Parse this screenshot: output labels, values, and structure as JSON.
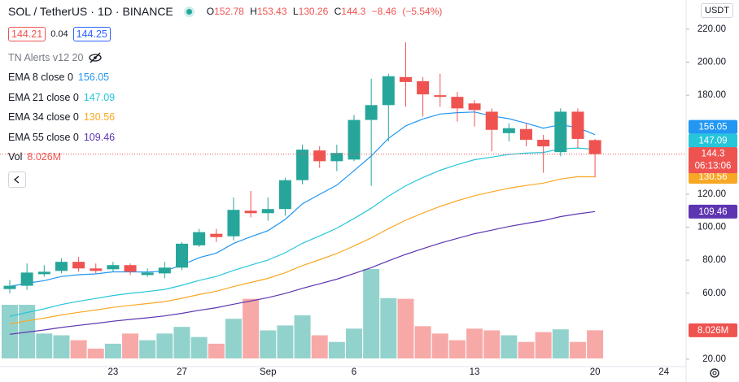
{
  "chart_data": {
    "type": "candlestick",
    "symbol": "SOL / TetherUS",
    "interval": "1D",
    "exchange": "BINANCE",
    "ohlc_labels": [
      "O",
      "H",
      "L",
      "C"
    ],
    "change": "−8.46",
    "change_pct": "(−5.54%)",
    "bid": 144.21,
    "spread": 0.04,
    "ask": 144.25,
    "indicator": "TN Alerts v12 20",
    "currency": "USDT",
    "countdown": "06:13:06",
    "categories": [
      null,
      null,
      null,
      null,
      null,
      null,
      "23",
      null,
      null,
      null,
      "27",
      null,
      null,
      null,
      null,
      "Sep",
      null,
      null,
      null,
      null,
      "6",
      null,
      null,
      null,
      null,
      null,
      null,
      "13",
      null,
      null,
      null,
      null,
      null,
      null,
      "20",
      null,
      null,
      null,
      "24"
    ],
    "open": [
      62.5,
      64.5,
      71.5,
      73.5,
      79,
      75,
      74.5,
      77,
      71,
      72,
      75.5,
      89,
      96,
      94.5,
      110,
      108.5,
      111,
      128.5,
      146.5,
      140,
      141,
      165,
      174,
      191,
      188.5,
      180,
      179,
      175,
      170,
      157,
      159.5,
      153,
      145.5,
      170,
      152.78,
      null,
      null,
      null,
      null
    ],
    "high": [
      68,
      78,
      77,
      81,
      82,
      78,
      79,
      78,
      75,
      79,
      91,
      99,
      99,
      118,
      122,
      118,
      130,
      150,
      149,
      150,
      168,
      190,
      193,
      212,
      191,
      193,
      182,
      177,
      172,
      163,
      163,
      156,
      172,
      172,
      153.43,
      null,
      null,
      null,
      null
    ],
    "low": [
      60,
      62,
      70,
      72,
      73,
      72,
      73,
      71,
      70,
      69,
      74,
      88,
      91,
      92,
      106,
      104,
      107,
      126,
      136,
      134,
      140,
      125,
      152,
      173,
      167,
      173,
      164,
      161,
      146,
      152,
      149,
      133,
      143,
      148,
      130.26,
      null,
      null,
      null,
      null
    ],
    "close": [
      64.5,
      72.5,
      73,
      79,
      75,
      73.5,
      77,
      73,
      72.5,
      75.5,
      90,
      97,
      94,
      110.5,
      108.5,
      111,
      128.5,
      147,
      140,
      145,
      165,
      174,
      191.5,
      188,
      180.5,
      179,
      172,
      171,
      159,
      160,
      153,
      149,
      170,
      153.5,
      144.3,
      null,
      null,
      null,
      null
    ],
    "up_color": "#26a69a",
    "down_color": "#ef5350",
    "series": [
      {
        "name": "EMA 8 close 0",
        "color": "#2196f3",
        "values": [
          64.1,
          66.0,
          67.6,
          70.1,
          71.2,
          71.7,
          72.9,
          72.9,
          72.8,
          73.4,
          77.1,
          81.5,
          84.3,
          90.1,
          94.2,
          97.9,
          104.7,
          114.1,
          119.9,
          125.5,
          134.3,
          143.1,
          153.8,
          161.4,
          165.6,
          168.6,
          169.4,
          169.8,
          167.4,
          165.8,
          163.0,
          160.0,
          162.2,
          160.3,
          156.05,
          null,
          null,
          null,
          null
        ]
      },
      {
        "name": "EMA 21 close 0",
        "color": "#26c6da",
        "values": [
          45.9,
          48.3,
          50.5,
          53.1,
          55.1,
          56.8,
          58.6,
          59.9,
          61.0,
          62.3,
          64.8,
          67.7,
          70.1,
          73.8,
          77.0,
          80.1,
          84.5,
          90.2,
          94.7,
          99.3,
          105.3,
          111.5,
          118.8,
          125.1,
          130.1,
          134.5,
          137.9,
          140.9,
          142.5,
          144.1,
          144.9,
          145.3,
          147.5,
          148.0,
          147.09,
          null,
          null,
          null,
          null
        ]
      },
      {
        "name": "EMA 34 close 0",
        "color": "#f9a825",
        "values": [
          41.4,
          43.2,
          44.9,
          46.8,
          48.4,
          49.8,
          51.4,
          52.6,
          53.7,
          54.9,
          56.9,
          59.2,
          61.2,
          64.0,
          66.5,
          69.0,
          72.4,
          76.7,
          80.3,
          84.0,
          88.6,
          93.5,
          99.1,
          104.2,
          108.6,
          112.6,
          116.0,
          119.1,
          121.4,
          123.6,
          125.3,
          126.7,
          129.2,
          130.6,
          130.56,
          null,
          null,
          null,
          null
        ]
      },
      {
        "name": "EMA 55 close 0",
        "color": "#5e35b1",
        "values": [
          35.1,
          36.4,
          37.7,
          39.2,
          40.5,
          41.7,
          43.0,
          44.1,
          45.1,
          46.2,
          47.8,
          49.6,
          51.2,
          53.3,
          55.3,
          57.3,
          59.8,
          62.9,
          65.7,
          68.5,
          71.9,
          75.5,
          79.6,
          83.5,
          87.0,
          90.3,
          93.2,
          96.0,
          98.2,
          100.4,
          102.3,
          104.0,
          106.4,
          108.1,
          109.46,
          null,
          null,
          null,
          null
        ]
      }
    ],
    "volume": {
      "name": "Vol",
      "values": [
        15.3,
        15.3,
        7.1,
        6.6,
        5.2,
        2.8,
        4.2,
        7.1,
        5.2,
        7.1,
        9.0,
        6.1,
        4.2,
        11.3,
        17.0,
        8.0,
        9.4,
        12.3,
        6.6,
        4.7,
        8.5,
        25.5,
        17.2,
        17.0,
        9.2,
        7.1,
        5.2,
        8.5,
        8.0,
        6.6,
        4.7,
        7.5,
        8.3,
        4.7,
        8.026,
        null,
        null,
        null,
        null
      ],
      "value_labels": [
        null,
        null,
        null,
        null,
        null,
        null,
        null,
        null,
        null,
        null,
        null,
        null,
        null,
        null,
        null,
        null,
        null,
        null,
        null,
        null,
        null,
        null,
        null,
        null,
        null,
        null,
        null,
        null,
        null,
        null,
        null,
        null,
        null,
        null,
        "8.026M",
        null,
        null,
        null,
        null
      ]
    },
    "ylim": [
      17.5,
      237.7
    ],
    "yticks": [
      {
        "value": 20,
        "label": "20.00"
      },
      {
        "value": 60,
        "label": "60.00"
      },
      {
        "value": 80,
        "label": "80.00"
      },
      {
        "value": 100,
        "label": "100.00"
      },
      {
        "value": 120,
        "label": "120.00"
      },
      {
        "value": 180,
        "label": "180.00"
      },
      {
        "value": 200,
        "label": "200.00"
      },
      {
        "value": 220,
        "label": "220.00"
      }
    ],
    "grid": false
  }
}
